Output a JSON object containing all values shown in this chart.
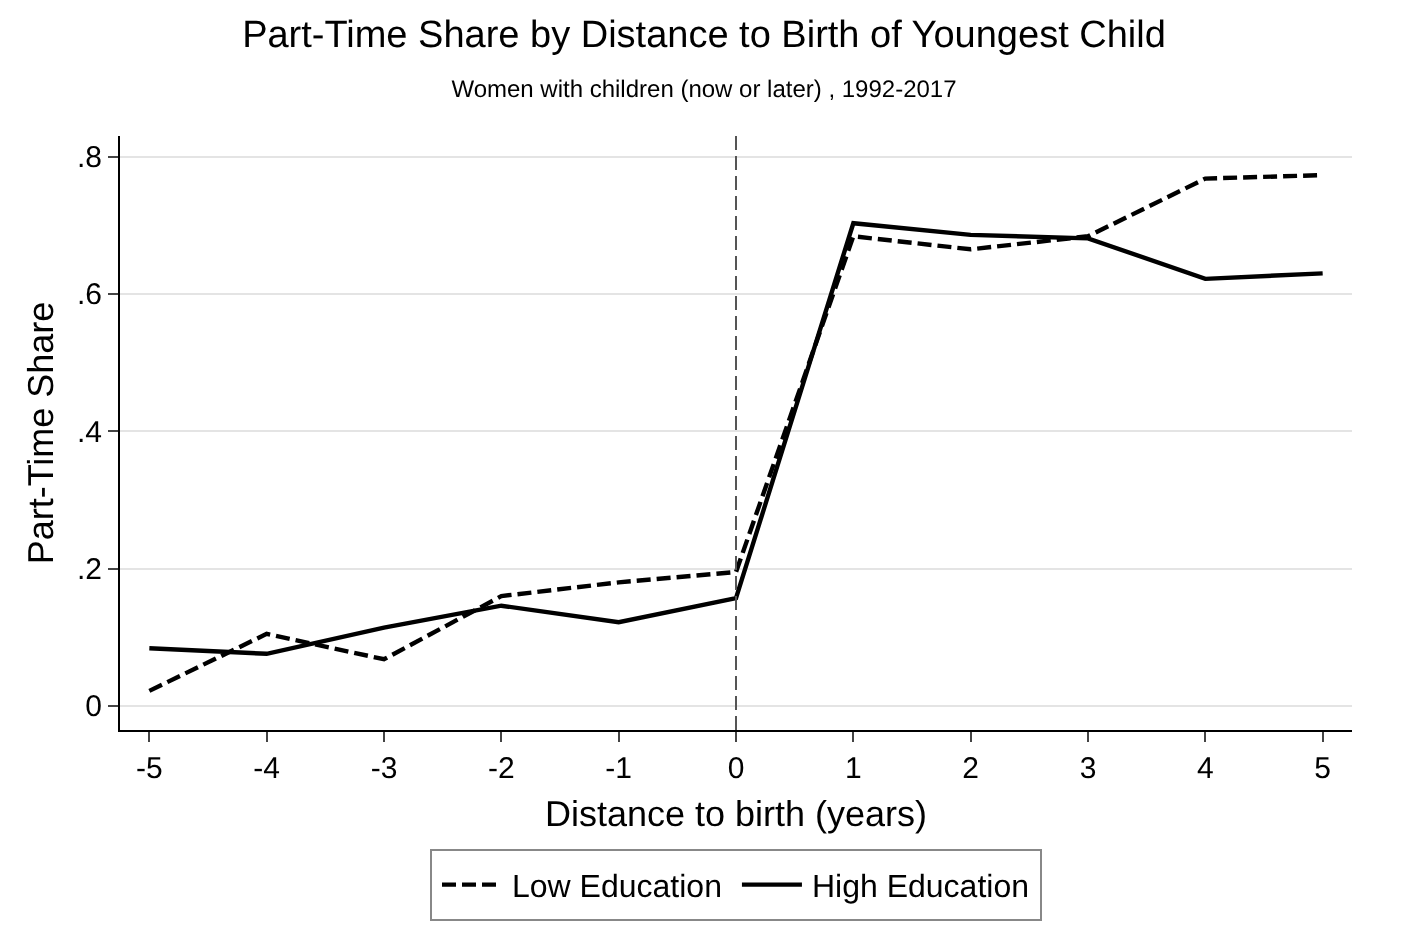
{
  "chart_data": {
    "type": "line",
    "title": "Part-Time Share by Distance to Birth of Youngest Child",
    "subtitle": "Women with children (now or later) , 1992-2017",
    "xlabel": "Distance to birth (years)",
    "ylabel": "Part-Time Share",
    "x": [
      -5,
      -4,
      -3,
      -2,
      -1,
      0,
      1,
      2,
      3,
      4,
      5
    ],
    "series": [
      {
        "name": "Low Education",
        "color": "#000000",
        "line_style": "dashed",
        "values": [
          0.022,
          0.105,
          0.068,
          0.16,
          0.18,
          0.195,
          0.684,
          0.665,
          0.684,
          0.768,
          0.773
        ]
      },
      {
        "name": "High Education",
        "color": "#000000",
        "line_style": "solid",
        "values": [
          0.084,
          0.076,
          0.114,
          0.146,
          0.122,
          0.157,
          0.703,
          0.686,
          0.681,
          0.622,
          0.63
        ]
      }
    ],
    "xlim": [
      -5.25,
      5.25
    ],
    "xticks": [
      -5,
      -4,
      -3,
      -2,
      -1,
      0,
      1,
      2,
      3,
      4,
      5
    ],
    "ylim": [
      -0.035,
      0.83
    ],
    "yticks": [
      0,
      {
        "value": 0.2,
        "label": ".2"
      },
      {
        "value": 0.4,
        "label": ".4"
      },
      {
        "value": 0.6,
        "label": ".6"
      },
      {
        "value": 0.8,
        "label": ".8"
      }
    ],
    "ref_lines": [
      {
        "axis": "x",
        "value": 0,
        "label": null,
        "color": "#555555",
        "line_style": "dashed"
      }
    ],
    "grid": "y",
    "legend": "bottom",
    "marker": "none"
  }
}
